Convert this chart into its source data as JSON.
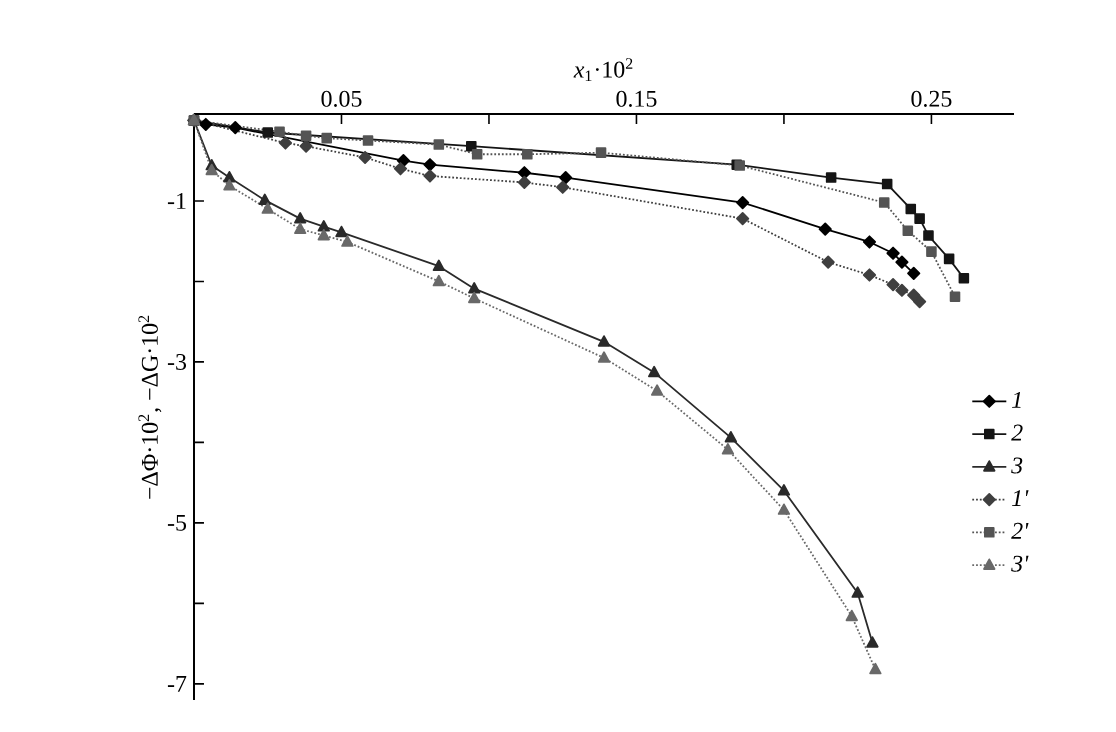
{
  "chart_data": {
    "type": "line",
    "xlabel": "*x*$_{1}$·10$^{2}$",
    "ylabel": "−ΔΦ·10$^{2}$, −ΔG·10$^{2}$",
    "xlim": [
      0,
      0.278
    ],
    "ylim": [
      -7.2,
      0.08
    ],
    "xticks": [
      0.05,
      {
        "value": 0.1,
        "label": null
      },
      0.15,
      {
        "value": 0.2,
        "label": null
      },
      0.25
    ],
    "yticks": [
      {
        "value": -2,
        "label": null
      },
      -1,
      -3,
      {
        "value": -4,
        "label": null
      },
      -5,
      {
        "value": -6,
        "label": null
      },
      -7
    ],
    "legend": "right",
    "grid": false,
    "series": [
      {
        "name": "1",
        "color": "#000000",
        "marker": "diamond",
        "line_style": "solid",
        "x": [
          0,
          0.004,
          0.014,
          0.071,
          0.08,
          0.112,
          0.126,
          0.186,
          0.214,
          0.229,
          0.237,
          0.24,
          0.244
        ],
        "values": [
          0,
          -0.05,
          -0.09,
          -0.5,
          -0.55,
          -0.65,
          -0.71,
          -1.02,
          -1.35,
          -1.51,
          -1.65,
          -1.76,
          -1.9
        ]
      },
      {
        "name": "2",
        "color": "#151515",
        "marker": "square",
        "line_style": "solid",
        "x": [
          0,
          0.025,
          0.094,
          0.184,
          0.216,
          0.235,
          0.243,
          0.246,
          0.249,
          0.256,
          0.261
        ],
        "values": [
          0,
          -0.15,
          -0.32,
          -0.55,
          -0.71,
          -0.79,
          -1.1,
          -1.22,
          -1.43,
          -1.72,
          -1.96
        ]
      },
      {
        "name": "3",
        "color": "#2a2a2a",
        "marker": "triangle",
        "line_style": "solid",
        "x": [
          0,
          0.006,
          0.012,
          0.024,
          0.036,
          0.044,
          0.05,
          0.083,
          0.095,
          0.139,
          0.156,
          0.182,
          0.2,
          0.225,
          0.23
        ],
        "values": [
          0,
          -0.56,
          -0.71,
          -0.99,
          -1.22,
          -1.32,
          -1.39,
          -1.81,
          -2.09,
          -2.75,
          -3.13,
          -3.94,
          -4.6,
          -5.87,
          -6.49
        ]
      },
      {
        "name": "1'",
        "color": "#3f3f3f",
        "marker": "diamond",
        "line_style": "dotted",
        "x": [
          0,
          0.031,
          0.038,
          0.058,
          0.07,
          0.08,
          0.112,
          0.125,
          0.186,
          0.215,
          0.229,
          0.237,
          0.24,
          0.244,
          0.246
        ],
        "values": [
          0,
          -0.28,
          -0.32,
          -0.46,
          -0.6,
          -0.69,
          -0.77,
          -0.83,
          -1.22,
          -1.76,
          -1.92,
          -2.04,
          -2.11,
          -2.17,
          -2.25
        ]
      },
      {
        "name": "2'",
        "color": "#545454",
        "marker": "square",
        "line_style": "dotted",
        "x": [
          0,
          0.029,
          0.038,
          0.045,
          0.059,
          0.083,
          0.096,
          0.113,
          0.138,
          0.185,
          0.234,
          0.242,
          0.25,
          0.258
        ],
        "values": [
          0,
          -0.14,
          -0.19,
          -0.22,
          -0.25,
          -0.3,
          -0.42,
          -0.42,
          -0.4,
          -0.56,
          -1.02,
          -1.37,
          -1.63,
          -2.19
        ]
      },
      {
        "name": "3'",
        "color": "#696969",
        "marker": "triangle",
        "line_style": "dotted",
        "x": [
          0,
          0.006,
          0.012,
          0.025,
          0.036,
          0.044,
          0.052,
          0.083,
          0.095,
          0.139,
          0.157,
          0.181,
          0.2,
          0.223,
          0.231
        ],
        "values": [
          0,
          -0.62,
          -0.81,
          -1.1,
          -1.35,
          -1.43,
          -1.51,
          -2.0,
          -2.21,
          -2.95,
          -3.36,
          -4.09,
          -4.84,
          -6.16,
          -6.82
        ]
      }
    ]
  }
}
